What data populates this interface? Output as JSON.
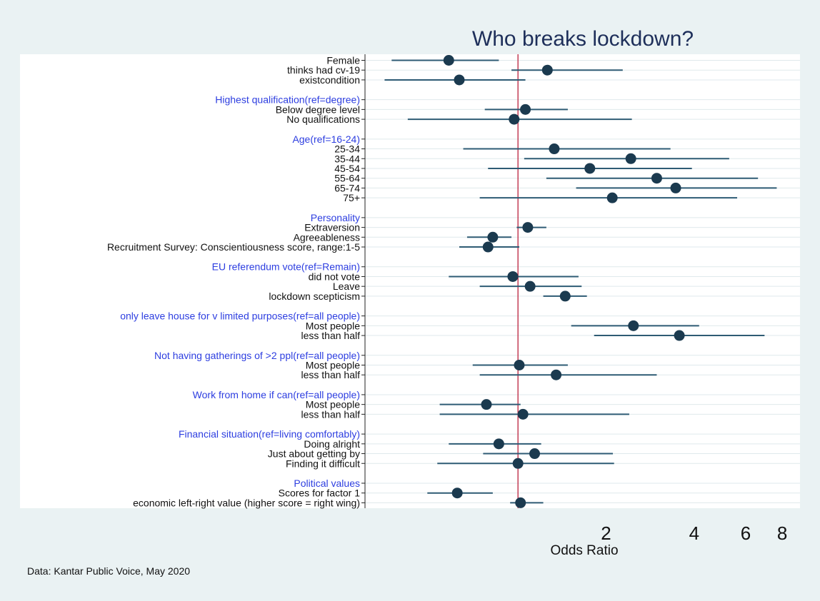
{
  "chart_data": {
    "type": "scatter",
    "subtype": "coefficient-plot",
    "title": "Who breaks lockdown?",
    "xlabel": "Odds Ratio",
    "x_scale": "log",
    "xlim": [
      0.3,
      9.2
    ],
    "x_ticks": [
      2,
      4,
      6,
      8
    ],
    "reference_line": 1,
    "grid": "horizontal",
    "colors": {
      "background": "#eaf2f3",
      "plot_background": "#ffffff",
      "point": "#1b3a4f",
      "ci_line": "#2e5b74",
      "reference_line": "#c0304a",
      "group_heading": "#2d3ee0",
      "label": "#111111"
    },
    "rows": [
      {
        "label": "Female",
        "heading": false,
        "or": 0.58,
        "lo": 0.37,
        "hi": 0.86
      },
      {
        "label": "thinks had cv-19",
        "heading": false,
        "or": 1.26,
        "lo": 0.95,
        "hi": 2.28
      },
      {
        "label": "existcondition",
        "heading": false,
        "or": 0.63,
        "lo": 0.35,
        "hi": 1.06
      },
      {
        "label": "Highest qualification(ref=degree)",
        "heading": true
      },
      {
        "label": "Below degree level",
        "heading": false,
        "or": 1.06,
        "lo": 0.77,
        "hi": 1.48
      },
      {
        "label": "No qualifications",
        "heading": false,
        "or": 0.97,
        "lo": 0.42,
        "hi": 2.45
      },
      {
        "label": "Age(ref=16-24)",
        "heading": true
      },
      {
        "label": "25-34",
        "heading": false,
        "or": 1.33,
        "lo": 0.65,
        "hi": 3.32
      },
      {
        "label": "35-44",
        "heading": false,
        "or": 2.43,
        "lo": 1.05,
        "hi": 5.27
      },
      {
        "label": "45-54",
        "heading": false,
        "or": 1.76,
        "lo": 0.79,
        "hi": 3.93
      },
      {
        "label": "55-64",
        "heading": false,
        "or": 2.98,
        "lo": 1.25,
        "hi": 6.61
      },
      {
        "label": "65-74",
        "heading": false,
        "or": 3.46,
        "lo": 1.58,
        "hi": 7.66
      },
      {
        "label": "75+",
        "heading": false,
        "or": 2.1,
        "lo": 0.74,
        "hi": 5.61
      },
      {
        "label": "Personality",
        "heading": true
      },
      {
        "label": "Extraversion",
        "heading": false,
        "or": 1.08,
        "lo": 0.99,
        "hi": 1.25
      },
      {
        "label": "Agreeableness",
        "heading": false,
        "or": 0.82,
        "lo": 0.67,
        "hi": 0.95
      },
      {
        "label": "Recruitment Survey: Conscientiousness score, range:1-5",
        "heading": false,
        "or": 0.79,
        "lo": 0.63,
        "hi": 1.01
      },
      {
        "label": "EU referendum vote(ref=Remain)",
        "heading": true
      },
      {
        "label": "did not vote",
        "heading": false,
        "or": 0.96,
        "lo": 0.58,
        "hi": 1.61
      },
      {
        "label": "Leave",
        "heading": false,
        "or": 1.1,
        "lo": 0.74,
        "hi": 1.65
      },
      {
        "label": "lockdown scepticism",
        "heading": false,
        "or": 1.45,
        "lo": 1.22,
        "hi": 1.72
      },
      {
        "label": "only leave house for v limited purposes(ref=all people)",
        "heading": true
      },
      {
        "label": "Most people",
        "heading": false,
        "or": 2.48,
        "lo": 1.52,
        "hi": 4.16
      },
      {
        "label": "less than half",
        "heading": false,
        "or": 3.56,
        "lo": 1.82,
        "hi": 6.96
      },
      {
        "label": "Not having gatherings of >2 ppl(ref=all people)",
        "heading": true
      },
      {
        "label": "Most people",
        "heading": false,
        "or": 1.01,
        "lo": 0.7,
        "hi": 1.48
      },
      {
        "label": "less than half",
        "heading": false,
        "or": 1.35,
        "lo": 0.74,
        "hi": 2.98
      },
      {
        "label": "Work from home if can(ref=all people)",
        "heading": true
      },
      {
        "label": "Most people",
        "heading": false,
        "or": 0.78,
        "lo": 0.54,
        "hi": 1.02
      },
      {
        "label": "less than half",
        "heading": false,
        "or": 1.04,
        "lo": 0.54,
        "hi": 2.4
      },
      {
        "label": "Financial situation(ref=living comfortably)",
        "heading": true
      },
      {
        "label": "Doing alright",
        "heading": false,
        "or": 0.86,
        "lo": 0.58,
        "hi": 1.2
      },
      {
        "label": "Just about getting by",
        "heading": false,
        "or": 1.14,
        "lo": 0.76,
        "hi": 2.11
      },
      {
        "label": "Finding it difficult",
        "heading": false,
        "or": 1.0,
        "lo": 0.53,
        "hi": 2.13
      },
      {
        "label": "Political values",
        "heading": true
      },
      {
        "label": "Scores for factor 1",
        "heading": false,
        "or": 0.62,
        "lo": 0.49,
        "hi": 0.82
      },
      {
        "label": "economic left-right value (higher score = right wing)",
        "heading": false,
        "or": 1.02,
        "lo": 0.94,
        "hi": 1.22
      }
    ]
  },
  "footnote": "Data: Kantar Public Voice, May 2020"
}
